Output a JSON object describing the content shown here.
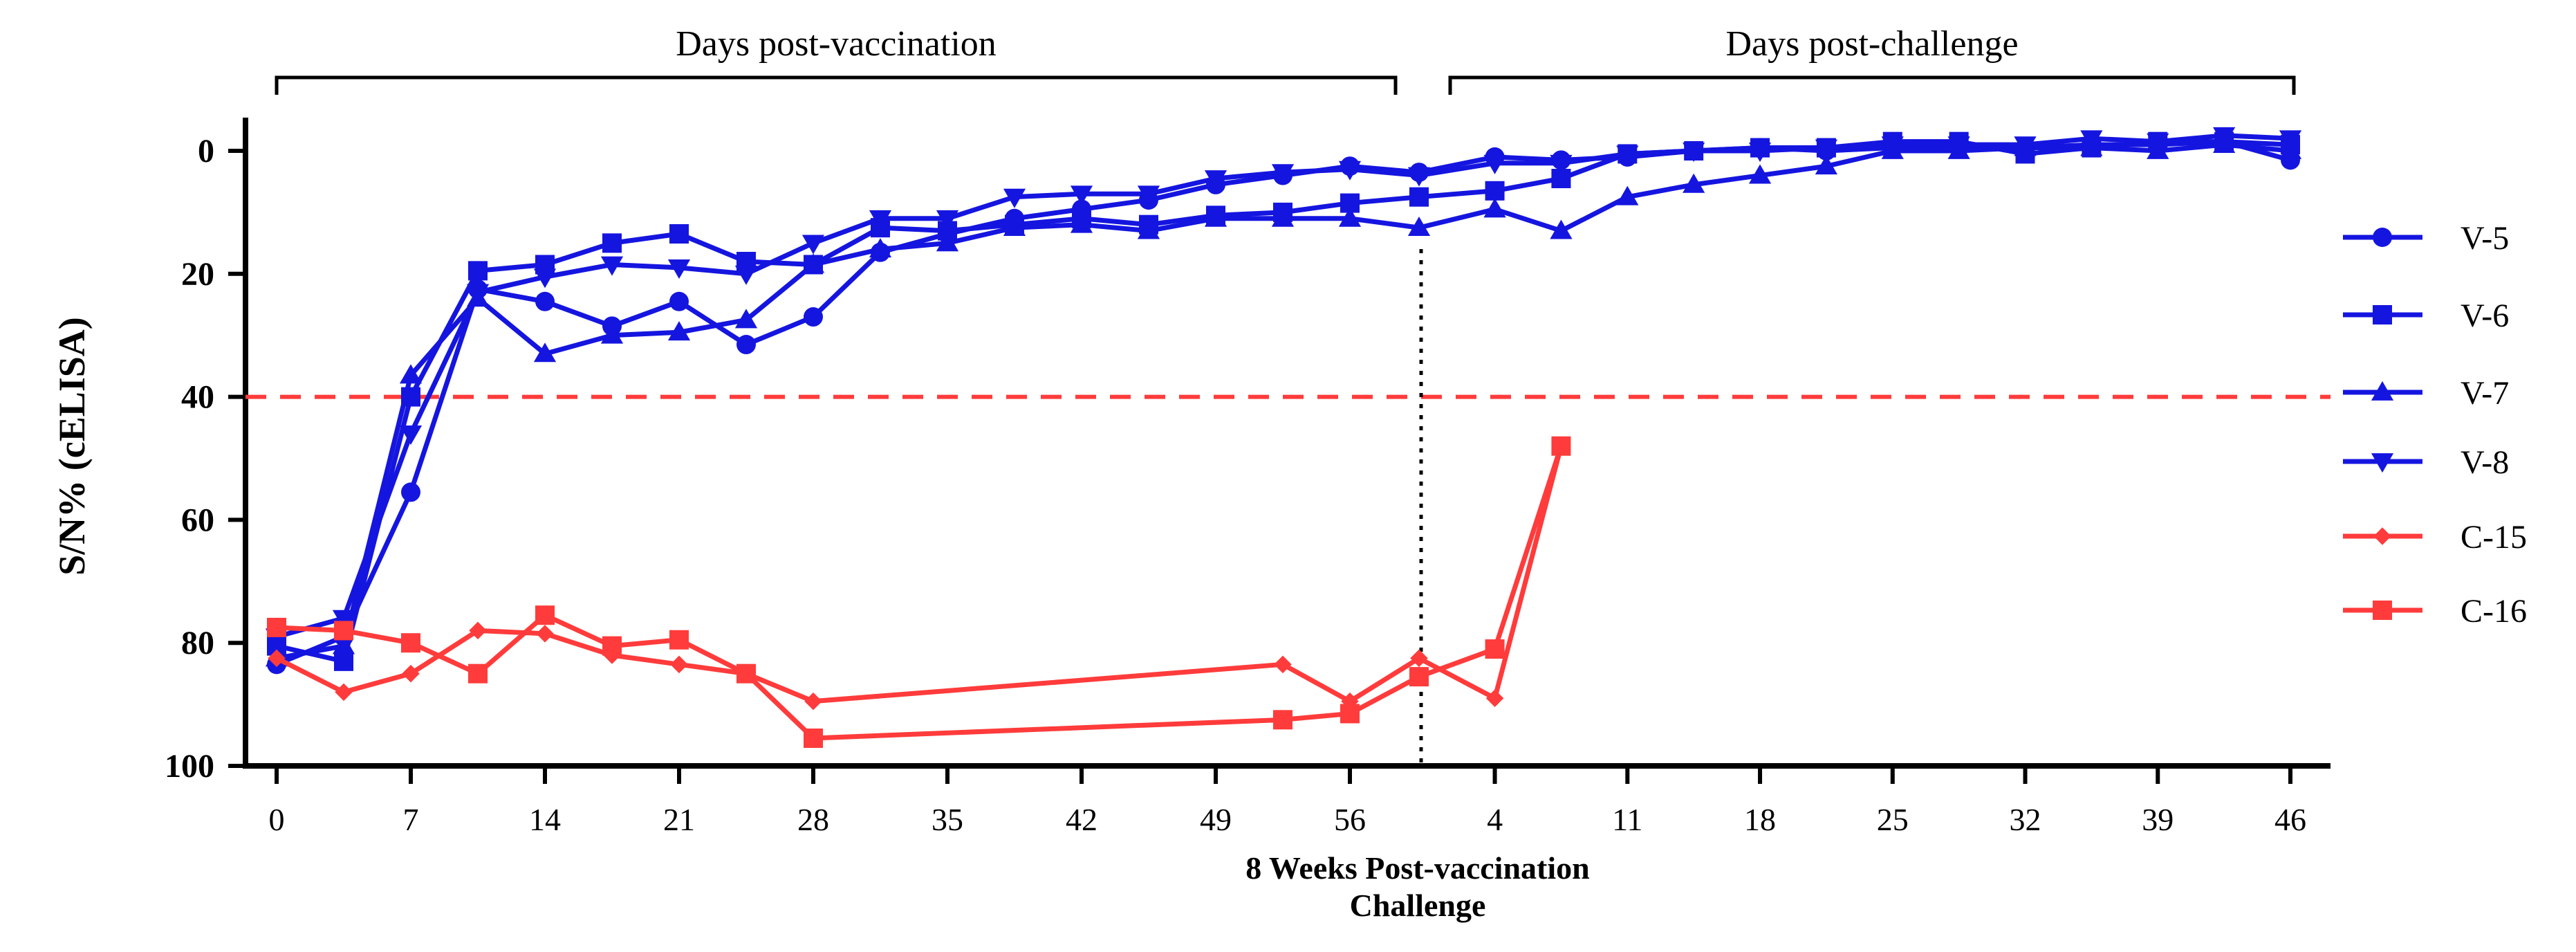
{
  "chart_data": {
    "type": "line",
    "ylabel": "S/N% (cELISA)",
    "xlabel_line1": "8 Weeks Post-vaccination",
    "xlabel_line2": "Challenge",
    "ylim": [
      100,
      -5
    ],
    "y_axis_reversed": true,
    "y_ticks": [
      0,
      20,
      40,
      60,
      80,
      100
    ],
    "x_ticks_vaccination": [
      "0",
      "7",
      "14",
      "21",
      "28",
      "35",
      "42",
      "49",
      "56"
    ],
    "x_ticks_challenge": [
      "4",
      "11",
      "18",
      "25",
      "32",
      "39",
      "46"
    ],
    "section_vaccination_label": "Days post-vaccination",
    "section_challenge_label": "Days post-challenge",
    "threshold": {
      "y": 40,
      "color": "#ff3b3b",
      "style": "dashed"
    },
    "challenge_divider": {
      "style": "dotted"
    },
    "grid": false,
    "legend_position": "right",
    "series": [
      {
        "name": "V-5",
        "color": "#1515e0",
        "marker": "circle",
        "points": [
          {
            "phase": "vaccination",
            "x": 0,
            "y": 83.5
          },
          {
            "phase": "vaccination",
            "x": 3.5,
            "y": 79
          },
          {
            "phase": "vaccination",
            "x": 7,
            "y": 55.5
          },
          {
            "phase": "vaccination",
            "x": 10.5,
            "y": 22.5
          },
          {
            "phase": "vaccination",
            "x": 14,
            "y": 24.5
          },
          {
            "phase": "vaccination",
            "x": 17.5,
            "y": 28.5
          },
          {
            "phase": "vaccination",
            "x": 21,
            "y": 24.5
          },
          {
            "phase": "vaccination",
            "x": 24.5,
            "y": 31.5
          },
          {
            "phase": "vaccination",
            "x": 28,
            "y": 27
          },
          {
            "phase": "vaccination",
            "x": 31.5,
            "y": 16.5
          },
          {
            "phase": "vaccination",
            "x": 35,
            "y": 13.5
          },
          {
            "phase": "vaccination",
            "x": 38.5,
            "y": 11
          },
          {
            "phase": "vaccination",
            "x": 42,
            "y": 9.5
          },
          {
            "phase": "vaccination",
            "x": 45.5,
            "y": 8
          },
          {
            "phase": "vaccination",
            "x": 49,
            "y": 5.5
          },
          {
            "phase": "vaccination",
            "x": 52.5,
            "y": 4
          },
          {
            "phase": "vaccination",
            "x": 56,
            "y": 2.5
          },
          {
            "phase": "challenge",
            "x": 0,
            "y": 3.5
          },
          {
            "phase": "challenge",
            "x": 4,
            "y": 1
          },
          {
            "phase": "challenge",
            "x": 7.5,
            "y": 1.5
          },
          {
            "phase": "challenge",
            "x": 11,
            "y": 1
          },
          {
            "phase": "challenge",
            "x": 14.5,
            "y": 0
          },
          {
            "phase": "challenge",
            "x": 18,
            "y": -0.5
          },
          {
            "phase": "challenge",
            "x": 21.5,
            "y": 0
          },
          {
            "phase": "challenge",
            "x": 25,
            "y": -0.5
          },
          {
            "phase": "challenge",
            "x": 28.5,
            "y": -0.5
          },
          {
            "phase": "challenge",
            "x": 32,
            "y": -0.5
          },
          {
            "phase": "challenge",
            "x": 35.5,
            "y": -1
          },
          {
            "phase": "challenge",
            "x": 39,
            "y": -1
          },
          {
            "phase": "challenge",
            "x": 42.5,
            "y": -1.5
          },
          {
            "phase": "challenge",
            "x": 46,
            "y": 1.5
          }
        ]
      },
      {
        "name": "V-6",
        "color": "#1515e0",
        "marker": "square",
        "points": [
          {
            "phase": "vaccination",
            "x": 0,
            "y": 80.5
          },
          {
            "phase": "vaccination",
            "x": 3.5,
            "y": 83
          },
          {
            "phase": "vaccination",
            "x": 7,
            "y": 40
          },
          {
            "phase": "vaccination",
            "x": 10.5,
            "y": 19.5
          },
          {
            "phase": "vaccination",
            "x": 14,
            "y": 18.5
          },
          {
            "phase": "vaccination",
            "x": 17.5,
            "y": 15
          },
          {
            "phase": "vaccination",
            "x": 21,
            "y": 13.5
          },
          {
            "phase": "vaccination",
            "x": 24.5,
            "y": 18
          },
          {
            "phase": "vaccination",
            "x": 28,
            "y": 18.5
          },
          {
            "phase": "vaccination",
            "x": 31.5,
            "y": 12.5
          },
          {
            "phase": "vaccination",
            "x": 35,
            "y": 13
          },
          {
            "phase": "vaccination",
            "x": 38.5,
            "y": 12
          },
          {
            "phase": "vaccination",
            "x": 42,
            "y": 11
          },
          {
            "phase": "vaccination",
            "x": 45.5,
            "y": 12
          },
          {
            "phase": "vaccination",
            "x": 49,
            "y": 10.5
          },
          {
            "phase": "vaccination",
            "x": 52.5,
            "y": 10
          },
          {
            "phase": "vaccination",
            "x": 56,
            "y": 8.5
          },
          {
            "phase": "challenge",
            "x": 0,
            "y": 7.5
          },
          {
            "phase": "challenge",
            "x": 4,
            "y": 6.5
          },
          {
            "phase": "challenge",
            "x": 7.5,
            "y": 4.5
          },
          {
            "phase": "challenge",
            "x": 11,
            "y": 0.5
          },
          {
            "phase": "challenge",
            "x": 14.5,
            "y": 0
          },
          {
            "phase": "challenge",
            "x": 18,
            "y": -0.5
          },
          {
            "phase": "challenge",
            "x": 21.5,
            "y": -0.5
          },
          {
            "phase": "challenge",
            "x": 25,
            "y": -1.5
          },
          {
            "phase": "challenge",
            "x": 28.5,
            "y": -1.5
          },
          {
            "phase": "challenge",
            "x": 32,
            "y": 0.5
          },
          {
            "phase": "challenge",
            "x": 35.5,
            "y": -0.5
          },
          {
            "phase": "challenge",
            "x": 39,
            "y": -1.5
          },
          {
            "phase": "challenge",
            "x": 42.5,
            "y": -1.5
          },
          {
            "phase": "challenge",
            "x": 46,
            "y": -1
          }
        ]
      },
      {
        "name": "V-7",
        "color": "#1515e0",
        "marker": "triangle-up",
        "points": [
          {
            "phase": "vaccination",
            "x": 0,
            "y": 82.5
          },
          {
            "phase": "vaccination",
            "x": 3.5,
            "y": 80.5
          },
          {
            "phase": "vaccination",
            "x": 7,
            "y": 36.5
          },
          {
            "phase": "vaccination",
            "x": 10.5,
            "y": 24
          },
          {
            "phase": "vaccination",
            "x": 14,
            "y": 33
          },
          {
            "phase": "vaccination",
            "x": 17.5,
            "y": 30
          },
          {
            "phase": "vaccination",
            "x": 21,
            "y": 29.5
          },
          {
            "phase": "vaccination",
            "x": 24.5,
            "y": 27.5
          },
          {
            "phase": "vaccination",
            "x": 28,
            "y": 18.5
          },
          {
            "phase": "vaccination",
            "x": 31.5,
            "y": 16
          },
          {
            "phase": "vaccination",
            "x": 35,
            "y": 15
          },
          {
            "phase": "vaccination",
            "x": 38.5,
            "y": 12.5
          },
          {
            "phase": "vaccination",
            "x": 42,
            "y": 12
          },
          {
            "phase": "vaccination",
            "x": 45.5,
            "y": 13
          },
          {
            "phase": "vaccination",
            "x": 49,
            "y": 11
          },
          {
            "phase": "vaccination",
            "x": 52.5,
            "y": 11
          },
          {
            "phase": "vaccination",
            "x": 56,
            "y": 11
          },
          {
            "phase": "challenge",
            "x": 0,
            "y": 12.5
          },
          {
            "phase": "challenge",
            "x": 4,
            "y": 9.5
          },
          {
            "phase": "challenge",
            "x": 7.5,
            "y": 13
          },
          {
            "phase": "challenge",
            "x": 11,
            "y": 7.5
          },
          {
            "phase": "challenge",
            "x": 14.5,
            "y": 5.5
          },
          {
            "phase": "challenge",
            "x": 18,
            "y": 4
          },
          {
            "phase": "challenge",
            "x": 21.5,
            "y": 2.5
          },
          {
            "phase": "challenge",
            "x": 25,
            "y": 0
          },
          {
            "phase": "challenge",
            "x": 28.5,
            "y": 0
          },
          {
            "phase": "challenge",
            "x": 32,
            "y": -0.5
          },
          {
            "phase": "challenge",
            "x": 35.5,
            "y": -0.5
          },
          {
            "phase": "challenge",
            "x": 39,
            "y": 0
          },
          {
            "phase": "challenge",
            "x": 42.5,
            "y": -1
          },
          {
            "phase": "challenge",
            "x": 46,
            "y": 0
          }
        ]
      },
      {
        "name": "V-8",
        "color": "#1515e0",
        "marker": "triangle-down",
        "points": [
          {
            "phase": "vaccination",
            "x": 0,
            "y": 79
          },
          {
            "phase": "vaccination",
            "x": 3.5,
            "y": 76
          },
          {
            "phase": "vaccination",
            "x": 7,
            "y": 46
          },
          {
            "phase": "vaccination",
            "x": 10.5,
            "y": 23
          },
          {
            "phase": "vaccination",
            "x": 14,
            "y": 20.5
          },
          {
            "phase": "vaccination",
            "x": 17.5,
            "y": 18.5
          },
          {
            "phase": "vaccination",
            "x": 21,
            "y": 19
          },
          {
            "phase": "vaccination",
            "x": 24.5,
            "y": 20
          },
          {
            "phase": "vaccination",
            "x": 28,
            "y": 15
          },
          {
            "phase": "vaccination",
            "x": 31.5,
            "y": 11
          },
          {
            "phase": "vaccination",
            "x": 35,
            "y": 11
          },
          {
            "phase": "vaccination",
            "x": 38.5,
            "y": 7.5
          },
          {
            "phase": "vaccination",
            "x": 42,
            "y": 7
          },
          {
            "phase": "vaccination",
            "x": 45.5,
            "y": 7
          },
          {
            "phase": "vaccination",
            "x": 49,
            "y": 4.5
          },
          {
            "phase": "vaccination",
            "x": 52.5,
            "y": 3.5
          },
          {
            "phase": "vaccination",
            "x": 56,
            "y": 3
          },
          {
            "phase": "challenge",
            "x": 0,
            "y": 4
          },
          {
            "phase": "challenge",
            "x": 4,
            "y": 2
          },
          {
            "phase": "challenge",
            "x": 7.5,
            "y": 2
          },
          {
            "phase": "challenge",
            "x": 11,
            "y": 0.5
          },
          {
            "phase": "challenge",
            "x": 14.5,
            "y": 0
          },
          {
            "phase": "challenge",
            "x": 18,
            "y": 0
          },
          {
            "phase": "challenge",
            "x": 21.5,
            "y": -0.5
          },
          {
            "phase": "challenge",
            "x": 25,
            "y": -1
          },
          {
            "phase": "challenge",
            "x": 28.5,
            "y": -1
          },
          {
            "phase": "challenge",
            "x": 32,
            "y": -1
          },
          {
            "phase": "challenge",
            "x": 35.5,
            "y": -2
          },
          {
            "phase": "challenge",
            "x": 39,
            "y": -1.5
          },
          {
            "phase": "challenge",
            "x": 42.5,
            "y": -2.5
          },
          {
            "phase": "challenge",
            "x": 46,
            "y": -2
          }
        ]
      },
      {
        "name": "C-15",
        "color": "#ff3b3b",
        "marker": "diamond",
        "points": [
          {
            "phase": "vaccination",
            "x": 0,
            "y": 82.5
          },
          {
            "phase": "vaccination",
            "x": 3.5,
            "y": 88
          },
          {
            "phase": "vaccination",
            "x": 7,
            "y": 85
          },
          {
            "phase": "vaccination",
            "x": 10.5,
            "y": 78
          },
          {
            "phase": "vaccination",
            "x": 14,
            "y": 78.5
          },
          {
            "phase": "vaccination",
            "x": 17.5,
            "y": 82
          },
          {
            "phase": "vaccination",
            "x": 21,
            "y": 83.5
          },
          {
            "phase": "vaccination",
            "x": 24.5,
            "y": 85
          },
          {
            "phase": "vaccination",
            "x": 28,
            "y": 89.5
          },
          {
            "phase": "vaccination",
            "x": 52.5,
            "y": 83.5
          },
          {
            "phase": "vaccination",
            "x": 56,
            "y": 89.5
          },
          {
            "phase": "challenge",
            "x": 0,
            "y": 82.5
          },
          {
            "phase": "challenge",
            "x": 4,
            "y": 89
          },
          {
            "phase": "challenge",
            "x": 7.5,
            "y": 48
          }
        ]
      },
      {
        "name": "C-16",
        "color": "#ff3b3b",
        "marker": "square",
        "points": [
          {
            "phase": "vaccination",
            "x": 0,
            "y": 77.5
          },
          {
            "phase": "vaccination",
            "x": 3.5,
            "y": 78
          },
          {
            "phase": "vaccination",
            "x": 7,
            "y": 80
          },
          {
            "phase": "vaccination",
            "x": 10.5,
            "y": 85
          },
          {
            "phase": "vaccination",
            "x": 14,
            "y": 75.5
          },
          {
            "phase": "vaccination",
            "x": 17.5,
            "y": 80.5
          },
          {
            "phase": "vaccination",
            "x": 21,
            "y": 79.5
          },
          {
            "phase": "vaccination",
            "x": 24.5,
            "y": 85
          },
          {
            "phase": "vaccination",
            "x": 28,
            "y": 95.5
          },
          {
            "phase": "vaccination",
            "x": 52.5,
            "y": 92.5
          },
          {
            "phase": "vaccination",
            "x": 56,
            "y": 91.5
          },
          {
            "phase": "challenge",
            "x": 0,
            "y": 85.5
          },
          {
            "phase": "challenge",
            "x": 4,
            "y": 81
          },
          {
            "phase": "challenge",
            "x": 7.5,
            "y": 48
          }
        ]
      }
    ]
  }
}
